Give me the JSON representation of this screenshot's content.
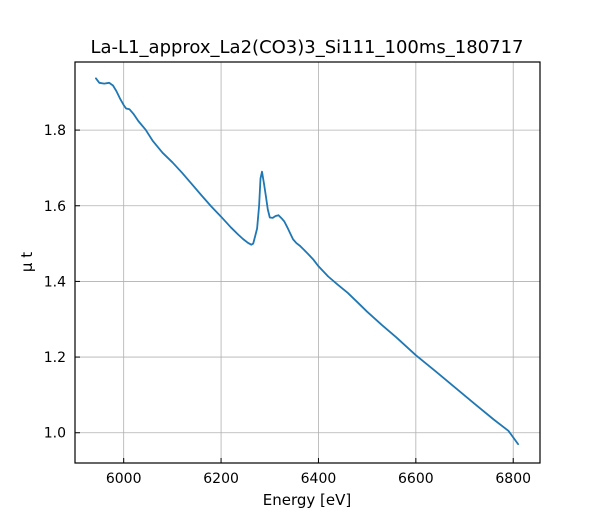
{
  "chart_data": {
    "type": "line",
    "title": "La-L1_approx_La2(CO3)3_Si111_100ms_180717",
    "xlabel": "Energy [eV]",
    "ylabel": "μ t",
    "xlim": [
      5900,
      6855
    ],
    "ylim": [
      0.92,
      1.98
    ],
    "xticks": [
      6000,
      6200,
      6400,
      6600,
      6800
    ],
    "yticks": [
      1.0,
      1.2,
      1.4,
      1.6,
      1.8
    ],
    "xtick_labels": [
      "6000",
      "6200",
      "6400",
      "6600",
      "6800"
    ],
    "ytick_labels": [
      "1.0",
      "1.2",
      "1.4",
      "1.6",
      "1.8"
    ],
    "grid": true,
    "series": [
      {
        "color": "#1f77b4",
        "x": [
          5943,
          5950,
          5960,
          5970,
          5978,
          5985,
          5993,
          6000,
          6005,
          6012,
          6020,
          6030,
          6045,
          6060,
          6080,
          6100,
          6120,
          6140,
          6160,
          6180,
          6200,
          6220,
          6235,
          6245,
          6255,
          6262,
          6266,
          6270,
          6274,
          6278,
          6281,
          6284,
          6288,
          6292,
          6296,
          6300,
          6306,
          6312,
          6318,
          6324,
          6330,
          6336,
          6342,
          6348,
          6355,
          6362,
          6370,
          6380,
          6390,
          6400,
          6420,
          6440,
          6460,
          6480,
          6500,
          6530,
          6560,
          6600,
          6640,
          6680,
          6720,
          6760,
          6790,
          6810
        ],
        "y": [
          1.937,
          1.925,
          1.923,
          1.925,
          1.918,
          1.903,
          1.882,
          1.866,
          1.857,
          1.855,
          1.843,
          1.824,
          1.801,
          1.771,
          1.74,
          1.715,
          1.687,
          1.657,
          1.627,
          1.598,
          1.571,
          1.543,
          1.524,
          1.512,
          1.502,
          1.497,
          1.5,
          1.52,
          1.54,
          1.6,
          1.672,
          1.69,
          1.66,
          1.625,
          1.59,
          1.569,
          1.568,
          1.573,
          1.575,
          1.567,
          1.558,
          1.543,
          1.527,
          1.511,
          1.501,
          1.494,
          1.484,
          1.471,
          1.457,
          1.44,
          1.413,
          1.391,
          1.37,
          1.345,
          1.32,
          1.285,
          1.252,
          1.205,
          1.163,
          1.12,
          1.077,
          1.035,
          1.005,
          0.97
        ]
      }
    ]
  }
}
